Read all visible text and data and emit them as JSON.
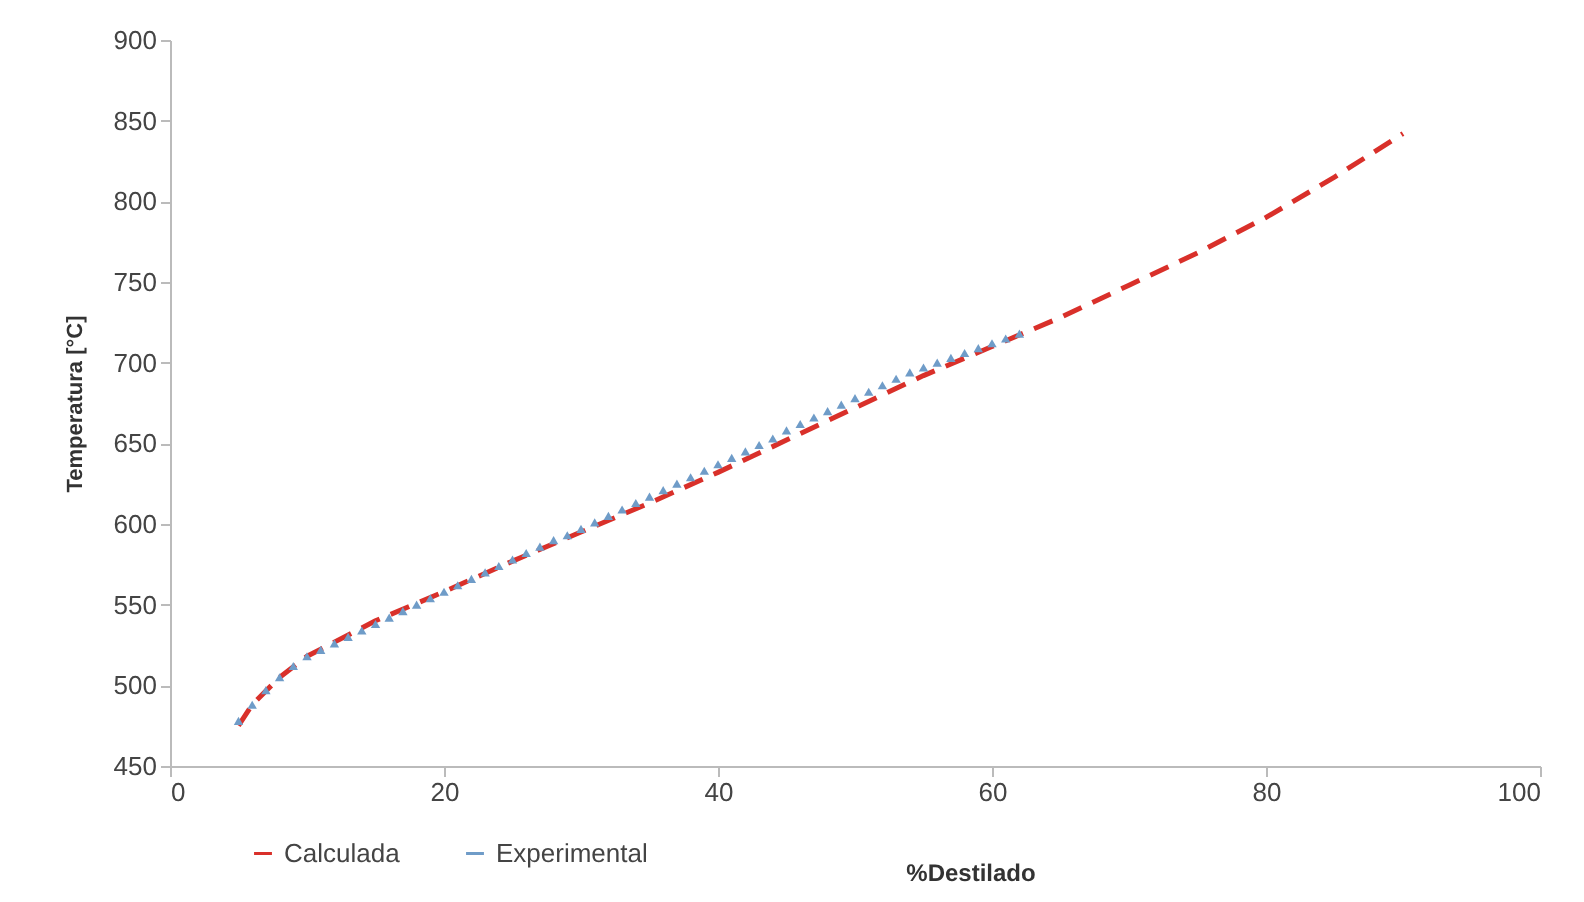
{
  "chart_data": {
    "type": "line",
    "xlabel": "%Destilado",
    "ylabel": "Temperatura [°C]",
    "xlim": [
      0,
      100
    ],
    "xticks": [
      0,
      20,
      40,
      60,
      80,
      100
    ],
    "ylim": [
      450,
      900
    ],
    "yticks": [
      450,
      500,
      550,
      600,
      650,
      700,
      750,
      800,
      850,
      900
    ],
    "grid": false,
    "legend": "bottom left",
    "series": [
      {
        "name": "Calculada",
        "line_style": "dashed",
        "marker": "none",
        "color": "#d9302a",
        "x": [
          5,
          6,
          8,
          10,
          15,
          20,
          25,
          30,
          35,
          40,
          45,
          50,
          55,
          60,
          65,
          70,
          75,
          80,
          85,
          90
        ],
        "values": [
          475,
          488,
          505,
          518,
          540,
          558,
          577,
          595,
          613,
          632,
          652,
          672,
          692,
          710,
          728,
          748,
          768,
          790,
          815,
          842
        ]
      },
      {
        "name": "Experimental",
        "type": "scatter",
        "marker": "triangle",
        "color": "#6f9cc8",
        "x": [
          5,
          6,
          7,
          8,
          9,
          10,
          11,
          12,
          13,
          14,
          15,
          16,
          17,
          18,
          19,
          20,
          21,
          22,
          23,
          24,
          25,
          26,
          27,
          28,
          29,
          30,
          31,
          32,
          33,
          34,
          35,
          36,
          37,
          38,
          39,
          40,
          41,
          42,
          43,
          44,
          45,
          46,
          47,
          48,
          49,
          50,
          51,
          52,
          53,
          54,
          55,
          56,
          57,
          58,
          59,
          60,
          61,
          62
        ],
        "values": [
          478,
          488,
          497,
          505,
          512,
          518,
          522,
          526,
          530,
          534,
          538,
          542,
          546,
          550,
          554,
          558,
          562,
          566,
          570,
          574,
          578,
          582,
          586,
          590,
          593,
          597,
          601,
          605,
          609,
          613,
          617,
          621,
          625,
          629,
          633,
          637,
          641,
          645,
          649,
          653,
          658,
          662,
          666,
          670,
          674,
          678,
          682,
          686,
          690,
          694,
          697,
          700,
          703,
          706,
          709,
          712,
          715,
          718
        ]
      }
    ]
  }
}
